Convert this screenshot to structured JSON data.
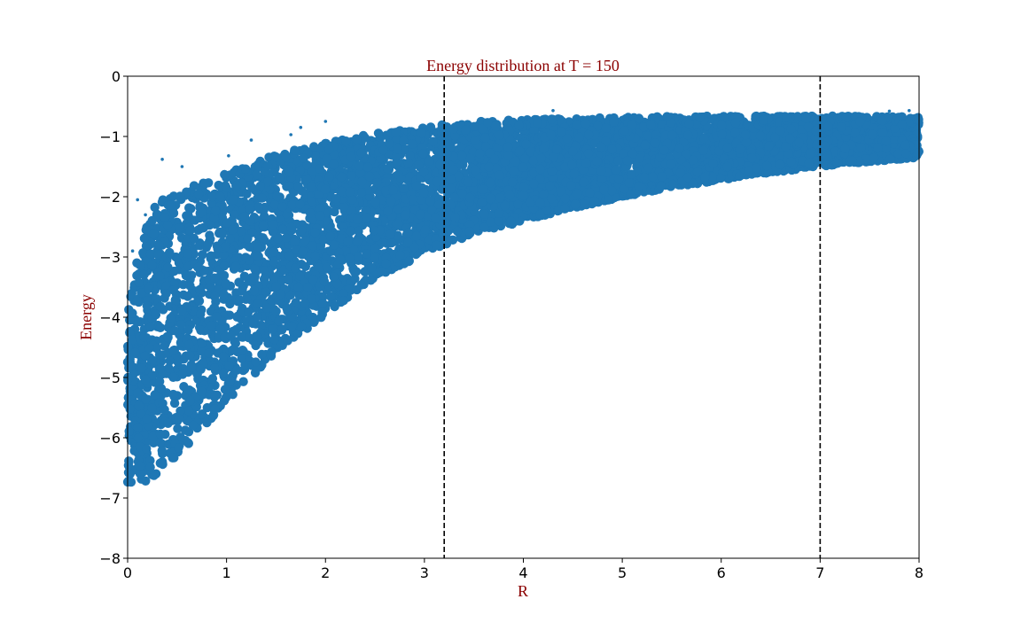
{
  "chart_data": {
    "type": "scatter",
    "title": "Energy distribution at T = 150",
    "xlabel": "R",
    "ylabel": "Energy",
    "xlim": [
      0,
      8
    ],
    "ylim": [
      -8,
      0
    ],
    "x_ticks": [
      0,
      1,
      2,
      3,
      4,
      5,
      6,
      7,
      8
    ],
    "y_ticks": [
      0,
      -1,
      -2,
      -3,
      -4,
      -5,
      -6,
      -7,
      -8
    ],
    "grid": false,
    "vertical_lines": [
      {
        "x": 3.2,
        "style": "dashed",
        "color": "#000000"
      },
      {
        "x": 7.0,
        "style": "dashed",
        "color": "#000000"
      }
    ],
    "envelope": {
      "R": [
        0.0,
        0.1,
        0.2,
        0.3,
        0.5,
        0.7,
        1.0,
        1.5,
        2.0,
        2.5,
        3.0,
        3.2,
        3.5,
        4.0,
        4.5,
        5.0,
        5.5,
        6.0,
        6.5,
        7.0,
        7.5,
        8.0
      ],
      "upper": [
        -3.9,
        -3.0,
        -2.4,
        -2.1,
        -1.9,
        -1.75,
        -1.6,
        -1.3,
        -1.1,
        -0.95,
        -0.85,
        -0.8,
        -0.75,
        -0.72,
        -0.7,
        -0.68,
        -0.67,
        -0.66,
        -0.66,
        -0.66,
        -0.66,
        -0.68
      ],
      "lower": [
        -6.8,
        -6.78,
        -6.72,
        -6.6,
        -6.3,
        -5.95,
        -5.4,
        -4.6,
        -3.95,
        -3.35,
        -2.95,
        -2.8,
        -2.65,
        -2.4,
        -2.2,
        -2.0,
        -1.85,
        -1.72,
        -1.6,
        -1.5,
        -1.42,
        -1.35
      ],
      "points": [
        {
          "x": 0.05,
          "y": -2.9
        },
        {
          "x": 0.1,
          "y": -2.05
        },
        {
          "x": 0.18,
          "y": -2.3
        },
        {
          "x": 0.35,
          "y": -1.38
        },
        {
          "x": 0.55,
          "y": -1.5
        },
        {
          "x": 1.02,
          "y": -1.32
        },
        {
          "x": 1.25,
          "y": -1.06
        },
        {
          "x": 1.65,
          "y": -0.97
        },
        {
          "x": 1.75,
          "y": -0.85
        },
        {
          "x": 2.0,
          "y": -0.75
        },
        {
          "x": 4.3,
          "y": -0.57
        },
        {
          "x": 5.8,
          "y": -0.63
        },
        {
          "x": 7.7,
          "y": -0.58
        },
        {
          "x": 7.9,
          "y": -0.57
        }
      ]
    },
    "series": [
      {
        "color": "#1f77b4"
      }
    ],
    "colors": {
      "points": "#1f77b4",
      "title": "#8b0000",
      "axis_label": "#8b0000",
      "axes": "#000000"
    }
  }
}
